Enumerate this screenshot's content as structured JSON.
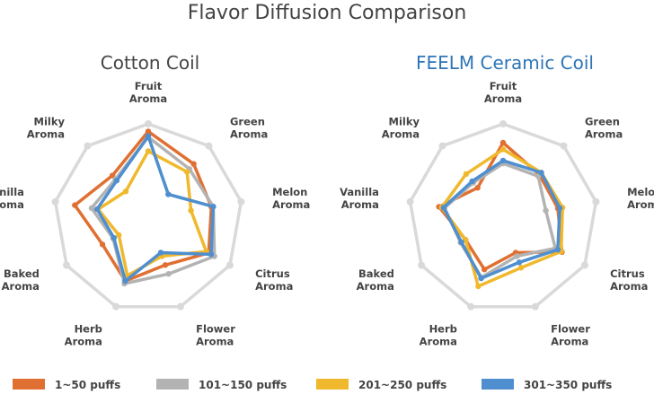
{
  "title": "Flavor Diffusion Comparison",
  "colors": {
    "title_text": "#444444",
    "cotton_title": "#444444",
    "ceramic_title": "#2e75b6",
    "grid": "#d9d9d9"
  },
  "legend": [
    {
      "label": "1~50 puffs",
      "color": "#e07032"
    },
    {
      "label": "101~150 puffs",
      "color": "#b3b3b3"
    },
    {
      "label": "201~250 puffs",
      "color": "#f0b92d"
    },
    {
      "label": "301~350 puffs",
      "color": "#4f8fcf"
    }
  ],
  "chart_data": [
    {
      "type": "radar",
      "title": "Cotton Coil",
      "axes": [
        [
          "Fruit",
          "Aroma"
        ],
        [
          "Green",
          "Aroma"
        ],
        [
          "Melon",
          "Aroma"
        ],
        [
          "Citrus",
          "Aroma"
        ],
        [
          "Flower",
          "Aroma"
        ],
        [
          "Herb",
          "Aroma"
        ],
        [
          "Baked",
          "Aroma"
        ],
        [
          "Vanilla",
          "Aroma"
        ],
        [
          "Milky",
          "Aroma"
        ]
      ],
      "range": [
        0,
        1
      ],
      "series": [
        {
          "name": "1~50 puffs",
          "values": [
            0.92,
            0.75,
            0.68,
            0.74,
            0.53,
            0.71,
            0.56,
            0.79,
            0.59
          ]
        },
        {
          "name": "101~150 puffs",
          "values": [
            0.86,
            0.68,
            0.7,
            0.81,
            0.63,
            0.74,
            0.43,
            0.61,
            0.54
          ]
        },
        {
          "name": "201~250 puffs",
          "values": [
            0.71,
            0.64,
            0.46,
            0.71,
            0.43,
            0.65,
            0.36,
            0.54,
            0.37
          ]
        },
        {
          "name": "301~350 puffs",
          "values": [
            0.87,
            0.33,
            0.7,
            0.77,
            0.39,
            0.71,
            0.42,
            0.55,
            0.52
          ]
        }
      ]
    },
    {
      "type": "radar",
      "title": "FEELM Ceramic Coil",
      "axes": [
        [
          "Fruit",
          "Aroma"
        ],
        [
          "Green",
          "Aroma"
        ],
        [
          "Melon",
          "Aroma"
        ],
        [
          "Citrus",
          "Aroma"
        ],
        [
          "Flower",
          "Aroma"
        ],
        [
          "Herb",
          "Aroma"
        ],
        [
          "Baked",
          "Aroma"
        ],
        [
          "Vanilla",
          "Aroma"
        ],
        [
          "Milky",
          "Aroma"
        ]
      ],
      "range": [
        0,
        1
      ],
      "series": [
        {
          "name": "1~50 puffs",
          "values": [
            0.8,
            0.6,
            0.59,
            0.72,
            0.39,
            0.58,
            0.46,
            0.69,
            0.42
          ]
        },
        {
          "name": "101~150 puffs",
          "values": [
            0.58,
            0.58,
            0.46,
            0.64,
            0.43,
            0.67,
            0.52,
            0.63,
            0.49
          ]
        },
        {
          "name": "201~250 puffs",
          "values": [
            0.73,
            0.63,
            0.64,
            0.71,
            0.56,
            0.77,
            0.46,
            0.66,
            0.61
          ]
        },
        {
          "name": "301~350 puffs",
          "values": [
            0.61,
            0.63,
            0.61,
            0.67,
            0.5,
            0.68,
            0.51,
            0.64,
            0.51
          ]
        }
      ]
    }
  ]
}
